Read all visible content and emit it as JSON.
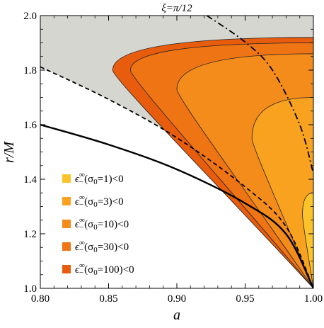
{
  "chart_data": {
    "type": "area",
    "title": "ξ=π/12",
    "xlabel": "a",
    "ylabel": "r/M",
    "xlim": [
      0.8,
      1.0
    ],
    "ylim": [
      1.0,
      2.0
    ],
    "x_ticks": [
      "0.80",
      "0.85",
      "0.90",
      "0.95",
      "1.00"
    ],
    "y_ticks": [
      "1.0",
      "1.2",
      "1.4",
      "1.6",
      "1.8",
      "2.0"
    ],
    "grid": false,
    "legend_position": "left-center",
    "colors": {
      "ergoregion": "#d6d6d0",
      "sigma1": "#fcc42a",
      "sigma3": "#f9a220",
      "sigma10": "#f48c1b",
      "sigma30": "#ee7414",
      "sigma100": "#e85c0e"
    },
    "legend": [
      {
        "label": "ϵ",
        "sub": "−",
        "sup": "∞",
        "rest": "(σ",
        "rest_sub": "0",
        "rest2": "=1)<0",
        "color": "#fcc42a"
      },
      {
        "label": "ϵ",
        "sub": "−",
        "sup": "∞",
        "rest": "(σ",
        "rest_sub": "0",
        "rest2": "=3)<0",
        "color": "#f9a220"
      },
      {
        "label": "ϵ",
        "sub": "−",
        "sup": "∞",
        "rest": "(σ",
        "rest_sub": "0",
        "rest2": "=10)<0",
        "color": "#f48c1b"
      },
      {
        "label": "ϵ",
        "sub": "−",
        "sup": "∞",
        "rest": "(σ",
        "rest_sub": "0",
        "rest2": "=30)<0",
        "color": "#ee7414"
      },
      {
        "label": "ϵ",
        "sub": "−",
        "sup": "∞",
        "rest": "(σ",
        "rest_sub": "0",
        "rest2": "=100)<0",
        "color": "#e85c0e"
      }
    ],
    "series": [
      {
        "style": "solid",
        "x": [
          0.8,
          0.85,
          0.9,
          0.95,
          0.98,
          1.0
        ],
        "y": [
          1.6,
          1.527,
          1.436,
          1.312,
          1.199,
          1.0
        ]
      },
      {
        "style": "dashed",
        "x": [
          0.8,
          0.85,
          0.9,
          0.95,
          0.98,
          1.0
        ],
        "y": [
          1.812,
          1.693,
          1.552,
          1.372,
          1.226,
          1.0
        ]
      },
      {
        "style": "dashdot",
        "x": [
          0.922,
          0.95,
          0.97,
          0.99,
          1.0
        ],
        "y": [
          2.0,
          1.903,
          1.8,
          1.6,
          1.42
        ]
      }
    ],
    "regions": [
      {
        "name": "σ0=100",
        "tip_a": 0.853,
        "tip_r": 1.8,
        "top_r": 1.92
      },
      {
        "name": "σ0=30",
        "tip_a": 0.866,
        "tip_r": 1.8,
        "top_r": 1.9
      },
      {
        "name": "σ0=10",
        "tip_a": 0.9,
        "tip_r": 1.73,
        "top_r": 1.86
      },
      {
        "name": "σ0=3",
        "tip_a": 0.955,
        "tip_r": 1.55,
        "top_r": 1.7
      },
      {
        "name": "σ0=1",
        "tip_a": 0.992,
        "tip_r": 1.27,
        "top_r": 1.35
      }
    ]
  }
}
